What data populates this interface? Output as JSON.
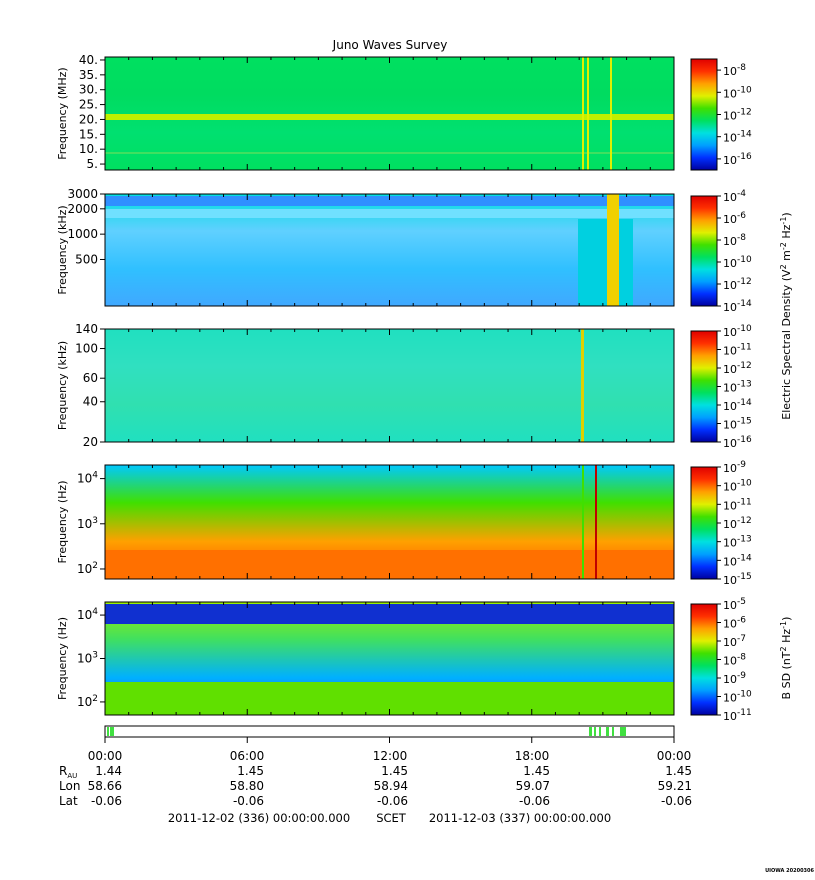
{
  "chart_data": {
    "type": "heatmap",
    "title": "Juno Waves Survey",
    "panels": [
      {
        "ylabel": "Frequency (MHz)",
        "scale": "linear",
        "yticks": [
          "5.",
          "10.",
          "15.",
          "20.",
          "25.",
          "30.",
          "35.",
          "40."
        ],
        "ytick_values": [
          5,
          10,
          15,
          20,
          25,
          30,
          35,
          40
        ],
        "ylim": [
          3,
          41
        ],
        "colorbar": {
          "ticks": [
            "-16",
            "-14",
            "-12",
            "-10",
            "-8"
          ],
          "base": "10"
        }
      },
      {
        "ylabel": "Frequency (kHz)",
        "scale": "log",
        "yticks": [
          "500",
          "1000",
          "2000",
          "3000"
        ],
        "ytick_values": [
          500,
          1000,
          2000,
          3000
        ],
        "ylim": [
          140,
          3000
        ],
        "colorbar": {
          "ticks": [
            "-14",
            "-12",
            "-10",
            "-8",
            "-6",
            "-4"
          ],
          "base": "10"
        }
      },
      {
        "ylabel": "Frequency (kHz)",
        "scale": "log",
        "yticks": [
          "20",
          "40",
          "60",
          "100",
          "140"
        ],
        "ytick_values": [
          20,
          40,
          60,
          100,
          140
        ],
        "ylim": [
          20,
          140
        ],
        "colorbar": {
          "ticks": [
            "-16",
            "-15",
            "-14",
            "-13",
            "-12",
            "-11",
            "-10"
          ],
          "base": "10"
        }
      },
      {
        "ylabel": "Frequency (Hz)",
        "scale": "log",
        "yticks": [
          "2",
          "3",
          "4"
        ],
        "ytick_values": [
          100,
          1000,
          10000
        ],
        "ylim": [
          60,
          20000
        ],
        "colorbar": {
          "ticks": [
            "-15",
            "-14",
            "-13",
            "-12",
            "-11",
            "-10",
            "-9"
          ],
          "base": "10"
        }
      },
      {
        "ylabel": "Frequency (Hz)",
        "scale": "log",
        "yticks": [
          "2",
          "3",
          "4"
        ],
        "ytick_values": [
          100,
          1000,
          10000
        ],
        "ylim": [
          50,
          20000
        ],
        "colorbar": {
          "ticks": [
            "-11",
            "-10",
            "-9",
            "-8",
            "-7",
            "-6",
            "-5"
          ],
          "base": "10"
        }
      }
    ],
    "colorbar_label_upper": "Electric Spectral Density (V",
    "colorbar_label_lower": "B SD (nT",
    "ephemeris": {
      "times": [
        "00:00",
        "06:00",
        "12:00",
        "18:00",
        "00:00"
      ],
      "rows": [
        {
          "label": "R",
          "sub": "AU",
          "values": [
            "1.44",
            "1.45",
            "1.45",
            "1.45",
            "1.45"
          ]
        },
        {
          "label": "Lon",
          "values": [
            "58.66",
            "58.80",
            "58.94",
            "59.07",
            "59.21"
          ]
        },
        {
          "label": "Lat",
          "values": [
            "-0.06",
            "-0.06",
            "-0.06",
            "-0.06",
            "-0.06"
          ]
        }
      ]
    },
    "time_range_start": "2011-12-02 (336) 00:00:00.000",
    "time_system": "SCET",
    "time_range_end": "2011-12-03 (337) 00:00:00.000",
    "footer_stamp": "UIOWA 20200306",
    "colors": {
      "palette": [
        "#0000a0",
        "#0030ff",
        "#00a0ff",
        "#00e0e0",
        "#00e060",
        "#40e000",
        "#e0f000",
        "#ffa000",
        "#ff3000",
        "#e00000"
      ]
    }
  }
}
